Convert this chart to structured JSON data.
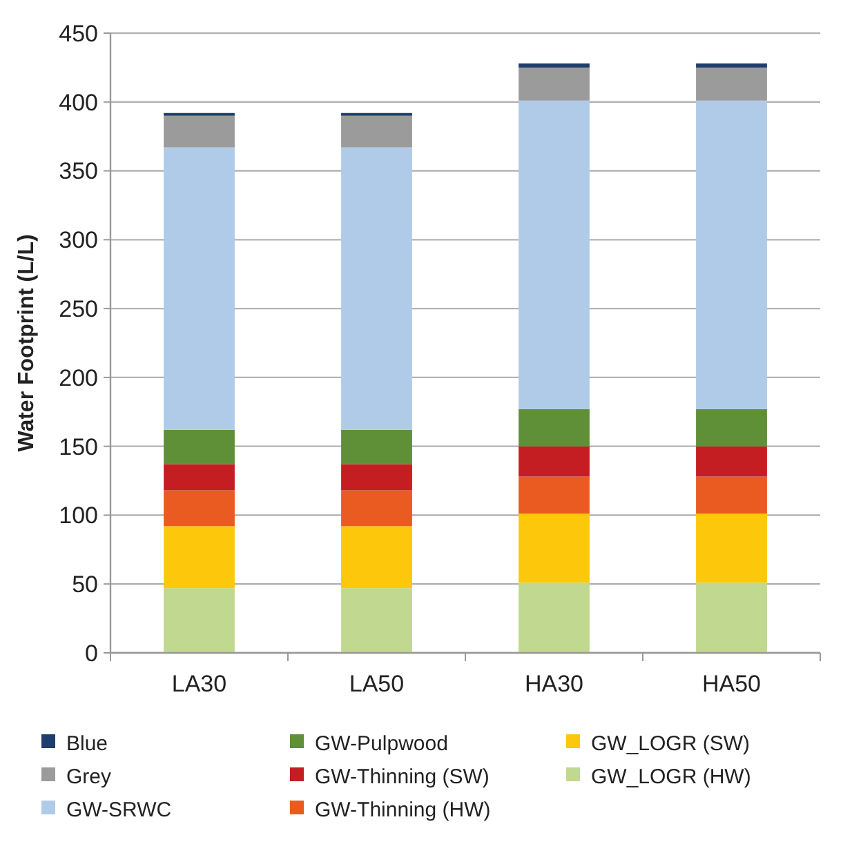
{
  "chart_data": {
    "type": "bar",
    "stacked": true,
    "ylabel": "Water Footprint (L/L)",
    "categories": [
      "LA30",
      "LA50",
      "HA30",
      "HA50"
    ],
    "ylim": [
      0,
      450
    ],
    "yticks": [
      0,
      50,
      100,
      150,
      200,
      250,
      300,
      350,
      400,
      450
    ],
    "grid": "y",
    "legend": "bottom",
    "series": [
      {
        "name": "GW_LOGR (HW)",
        "color": "#c0d890",
        "values": [
          47,
          47,
          51,
          51
        ]
      },
      {
        "name": "GW_LOGR (SW)",
        "color": "#fdc70c",
        "values": [
          45,
          45,
          50,
          50
        ]
      },
      {
        "name": "GW-Thinning (HW)",
        "color": "#ea5b22",
        "values": [
          26,
          26,
          27,
          27
        ]
      },
      {
        "name": "GW-Thinning (SW)",
        "color": "#c41e22",
        "values": [
          19,
          19,
          22,
          22
        ]
      },
      {
        "name": "GW-Pulpwood",
        "color": "#5f9038",
        "values": [
          25,
          25,
          27,
          27
        ]
      },
      {
        "name": "GW-SRWC",
        "color": "#b0cbe8",
        "values": [
          205,
          205,
          224,
          224
        ]
      },
      {
        "name": "Grey",
        "color": "#9b9b9b",
        "values": [
          23,
          23,
          24,
          24
        ]
      },
      {
        "name": "Blue",
        "color": "#1f3d6e",
        "values": [
          2,
          2,
          3,
          3
        ]
      }
    ]
  }
}
